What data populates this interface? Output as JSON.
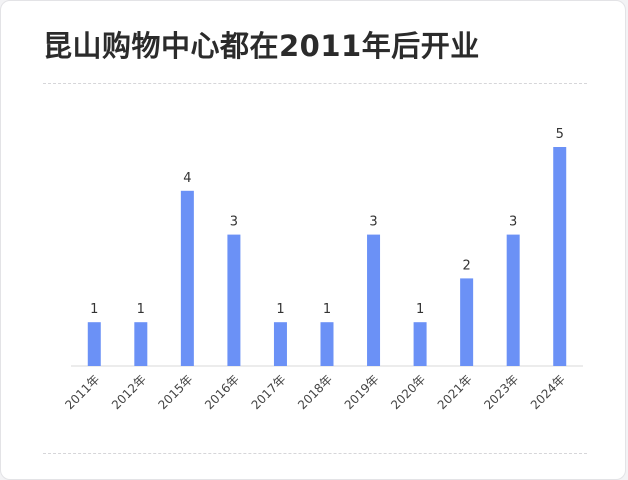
{
  "title": "昆山购物中心都在2011年后开业",
  "chart_data": {
    "type": "bar",
    "title": "昆山购物中心都在2011年后开业",
    "categories": [
      "2011年",
      "2012年",
      "2015年",
      "2016年",
      "2017年",
      "2018年",
      "2019年",
      "2020年",
      "2021年",
      "2023年",
      "2024年"
    ],
    "values": [
      1,
      1,
      4,
      3,
      1,
      1,
      3,
      1,
      2,
      3,
      5
    ],
    "ylim": [
      0,
      5
    ],
    "xlabel": "",
    "ylabel": "",
    "grid": false,
    "bar_color": "#6b91f6"
  }
}
